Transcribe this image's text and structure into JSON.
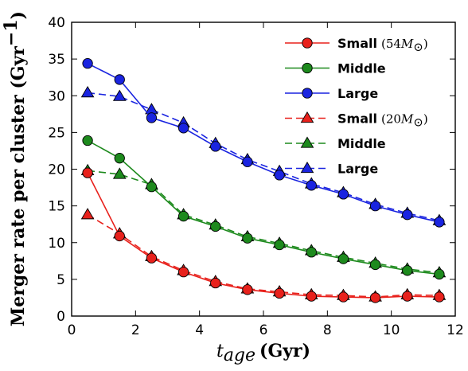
{
  "chart_data": {
    "type": "line",
    "xlabel_var": "t",
    "xlabel_sub": "age",
    "xlabel_unit": "(Gyr)",
    "ylabel": "Merger rate per cluster (Gyr",
    "ylabel_exp": "−1",
    "ylabel_close": ")",
    "xlim": [
      0,
      12
    ],
    "ylim": [
      0,
      40
    ],
    "xticks": [
      0,
      2,
      4,
      6,
      8,
      10,
      12
    ],
    "yticks": [
      0,
      5,
      10,
      15,
      20,
      25,
      30,
      35,
      40
    ],
    "grid": false,
    "legend_position": "top-right",
    "x": [
      0.5,
      1.5,
      2.5,
      3.5,
      4.5,
      5.5,
      6.5,
      7.5,
      8.5,
      9.5,
      10.5,
      11.5
    ],
    "series": [
      {
        "name": "Small",
        "note": "54",
        "style": "solid",
        "marker": "circle",
        "color": "#e8211c",
        "values": [
          19.5,
          10.9,
          7.9,
          6.0,
          4.5,
          3.6,
          3.1,
          2.7,
          2.6,
          2.5,
          2.7,
          2.6
        ]
      },
      {
        "name": "Middle",
        "style": "solid",
        "marker": "circle",
        "color": "#1d8a1d",
        "values": [
          23.9,
          21.5,
          17.6,
          13.6,
          12.2,
          10.6,
          9.7,
          8.7,
          7.8,
          7.0,
          6.2,
          5.7
        ]
      },
      {
        "name": "Large",
        "style": "solid",
        "marker": "circle",
        "color": "#1a24e0",
        "values": [
          34.4,
          32.2,
          27.0,
          25.6,
          23.1,
          21.0,
          19.2,
          17.8,
          16.6,
          15.0,
          13.8,
          12.8
        ]
      },
      {
        "name": "Small",
        "note": "20",
        "style": "dashed",
        "marker": "triangle",
        "color": "#e8211c",
        "values": [
          13.8,
          11.2,
          8.1,
          6.2,
          4.7,
          3.7,
          3.3,
          2.9,
          2.8,
          2.6,
          2.9,
          2.8
        ]
      },
      {
        "name": "Middle",
        "style": "dashed",
        "marker": "triangle",
        "color": "#1d8a1d",
        "values": [
          19.8,
          19.3,
          17.9,
          13.8,
          12.4,
          10.8,
          9.9,
          8.9,
          8.0,
          7.2,
          6.4,
          5.9
        ]
      },
      {
        "name": "Large",
        "style": "dashed",
        "marker": "triangle",
        "color": "#1a24e0",
        "values": [
          30.4,
          29.9,
          28.1,
          26.3,
          23.5,
          21.3,
          19.7,
          18.0,
          16.8,
          15.2,
          14.0,
          13.0
        ]
      }
    ]
  }
}
